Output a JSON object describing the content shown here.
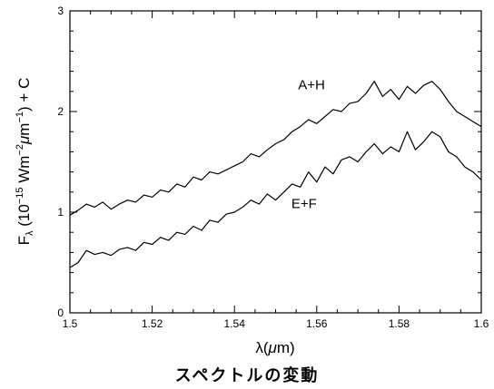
{
  "chart_data": {
    "type": "line",
    "xlabel_parts": [
      "λ(",
      "μ",
      "m)"
    ],
    "ylabel_parts": [
      "F",
      "λ",
      " (10",
      "−15",
      " Wm",
      "−2",
      "μ",
      "m",
      "−1",
      ") + C"
    ],
    "xlim": [
      1.5,
      1.6
    ],
    "ylim": [
      0,
      3
    ],
    "x_ticks": [
      1.5,
      1.52,
      1.54,
      1.56,
      1.58,
      1.6
    ],
    "x_tick_labels": [
      "1.5",
      "1.52",
      "1.54",
      "1.56",
      "1.58",
      "1.6"
    ],
    "y_ticks": [
      0,
      1,
      2,
      3
    ],
    "y_tick_labels": [
      "0",
      "1",
      "2",
      "3"
    ],
    "series": [
      {
        "name": "A+H",
        "x": [
          1.5,
          1.502,
          1.504,
          1.506,
          1.508,
          1.51,
          1.512,
          1.514,
          1.516,
          1.518,
          1.52,
          1.522,
          1.524,
          1.526,
          1.528,
          1.53,
          1.532,
          1.534,
          1.536,
          1.538,
          1.54,
          1.542,
          1.544,
          1.546,
          1.548,
          1.55,
          1.552,
          1.554,
          1.556,
          1.558,
          1.56,
          1.562,
          1.564,
          1.566,
          1.568,
          1.57,
          1.572,
          1.574,
          1.576,
          1.578,
          1.58,
          1.582,
          1.584,
          1.586,
          1.588,
          1.59,
          1.592,
          1.594,
          1.596,
          1.598,
          1.6
        ],
        "y": [
          0.97,
          1.02,
          1.08,
          1.05,
          1.1,
          1.03,
          1.08,
          1.12,
          1.1,
          1.17,
          1.15,
          1.22,
          1.2,
          1.28,
          1.25,
          1.35,
          1.32,
          1.4,
          1.38,
          1.42,
          1.46,
          1.5,
          1.58,
          1.55,
          1.62,
          1.68,
          1.72,
          1.8,
          1.85,
          1.92,
          1.88,
          1.95,
          2.02,
          2.0,
          2.08,
          2.1,
          2.18,
          2.3,
          2.15,
          2.22,
          2.12,
          2.25,
          2.18,
          2.26,
          2.3,
          2.22,
          2.1,
          2.0,
          1.95,
          1.9,
          1.85
        ]
      },
      {
        "name": "E+F",
        "x": [
          1.5,
          1.502,
          1.504,
          1.506,
          1.508,
          1.51,
          1.512,
          1.514,
          1.516,
          1.518,
          1.52,
          1.522,
          1.524,
          1.526,
          1.528,
          1.53,
          1.532,
          1.534,
          1.536,
          1.538,
          1.54,
          1.542,
          1.544,
          1.546,
          1.548,
          1.55,
          1.552,
          1.554,
          1.556,
          1.558,
          1.56,
          1.562,
          1.564,
          1.566,
          1.568,
          1.57,
          1.572,
          1.574,
          1.576,
          1.578,
          1.58,
          1.582,
          1.584,
          1.586,
          1.588,
          1.59,
          1.592,
          1.594,
          1.596,
          1.598,
          1.6
        ],
        "y": [
          0.45,
          0.5,
          0.62,
          0.58,
          0.6,
          0.57,
          0.63,
          0.65,
          0.62,
          0.7,
          0.68,
          0.75,
          0.72,
          0.8,
          0.78,
          0.86,
          0.82,
          0.92,
          0.9,
          0.98,
          1.0,
          1.05,
          1.12,
          1.08,
          1.18,
          1.12,
          1.2,
          1.28,
          1.25,
          1.4,
          1.3,
          1.45,
          1.38,
          1.52,
          1.55,
          1.5,
          1.6,
          1.68,
          1.58,
          1.65,
          1.6,
          1.8,
          1.62,
          1.7,
          1.8,
          1.75,
          1.6,
          1.55,
          1.45,
          1.4,
          1.32
        ]
      }
    ]
  },
  "caption": "スペクトルの変動"
}
